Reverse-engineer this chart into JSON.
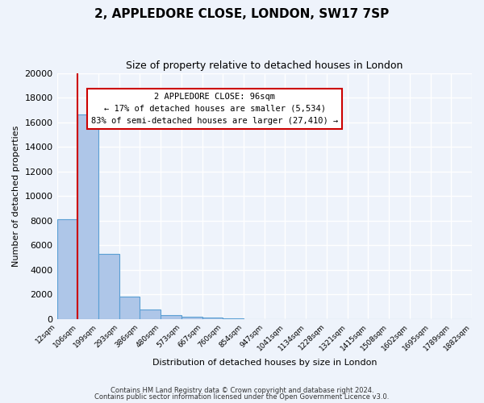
{
  "title": "2, APPLEDORE CLOSE, LONDON, SW17 7SP",
  "subtitle": "Size of property relative to detached houses in London",
  "xlabel": "Distribution of detached houses by size in London",
  "ylabel": "Number of detached properties",
  "bin_labels": [
    "12sqm",
    "106sqm",
    "199sqm",
    "293sqm",
    "386sqm",
    "480sqm",
    "573sqm",
    "667sqm",
    "760sqm",
    "854sqm",
    "947sqm",
    "1041sqm",
    "1134sqm",
    "1228sqm",
    "1321sqm",
    "1415sqm",
    "1508sqm",
    "1602sqm",
    "1695sqm",
    "1789sqm",
    "1882sqm"
  ],
  "bar_heights": [
    8100,
    16600,
    5300,
    1800,
    750,
    300,
    150,
    100,
    50,
    0,
    0,
    0,
    0,
    0,
    0,
    0,
    0,
    0,
    0,
    0
  ],
  "bar_color": "#aec6e8",
  "bar_edge_color": "#5a9fd4",
  "vline_color": "#cc0000",
  "ylim": [
    0,
    20000
  ],
  "yticks": [
    0,
    2000,
    4000,
    6000,
    8000,
    10000,
    12000,
    14000,
    16000,
    18000,
    20000
  ],
  "annotation_title": "2 APPLEDORE CLOSE: 96sqm",
  "annotation_line1": "← 17% of detached houses are smaller (5,534)",
  "annotation_line2": "83% of semi-detached houses are larger (27,410) →",
  "annotation_box_color": "#ffffff",
  "annotation_box_edge": "#cc0000",
  "bg_color": "#eef3fb",
  "grid_color": "#ffffff",
  "footnote1": "Contains HM Land Registry data © Crown copyright and database right 2024.",
  "footnote2": "Contains public sector information licensed under the Open Government Licence v3.0."
}
